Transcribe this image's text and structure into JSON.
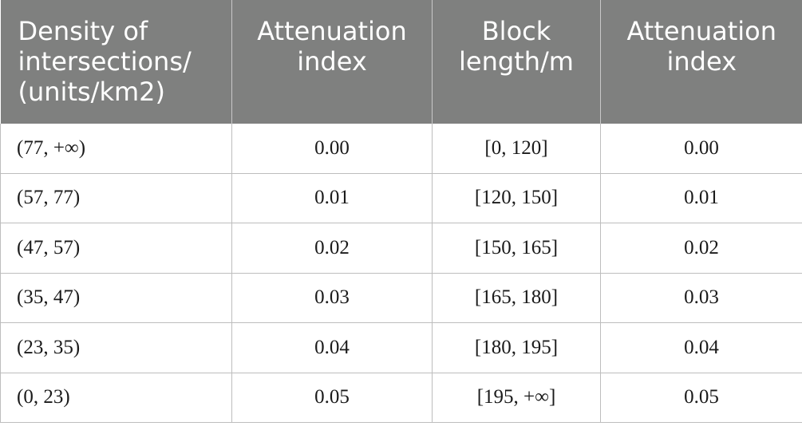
{
  "table": {
    "headers": [
      [
        "Density of",
        "intersections/",
        "(units/km2)"
      ],
      [
        "Attenuation",
        "index"
      ],
      [
        "Block",
        "length/m"
      ],
      [
        "Attenuation",
        "index"
      ]
    ],
    "rows": [
      [
        "(77, +∞)",
        "0.00",
        "[0, 120]",
        "0.00"
      ],
      [
        "(57, 77)",
        "0.01",
        "[120, 150]",
        "0.01"
      ],
      [
        "(47, 57)",
        "0.02",
        "[150, 165]",
        "0.02"
      ],
      [
        "(35, 47)",
        "0.03",
        "[165, 180]",
        "0.03"
      ],
      [
        "(23, 35)",
        "0.04",
        "[180, 195]",
        "0.04"
      ],
      [
        "(0, 23)",
        "0.05",
        "[195, +∞]",
        "0.05"
      ]
    ]
  },
  "colors": {
    "header_background": "#7f807f",
    "header_text": "#ffffff",
    "grid_line": "#bdbdbd"
  }
}
